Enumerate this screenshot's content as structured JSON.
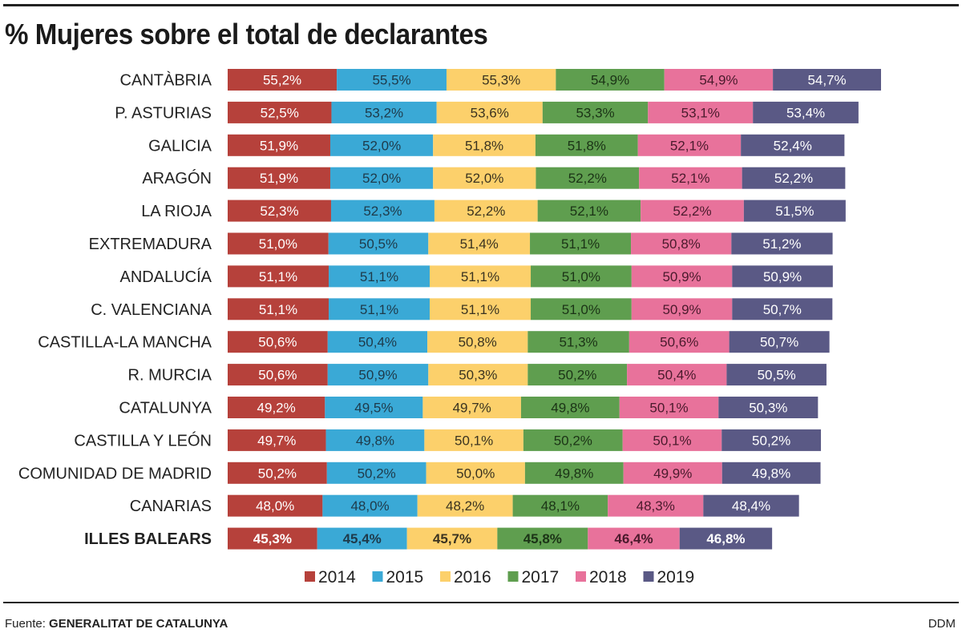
{
  "title": "% Mujeres sobre el total de declarantes",
  "source_label": "Fuente:",
  "source_name": "GENERALITAT DE CATALUNYA",
  "credit": "DDM",
  "chart_data": {
    "type": "bar",
    "orientation": "horizontal",
    "stacked": true,
    "title": "% Mujeres sobre el total de declarantes",
    "categories": [
      "CANTÀBRIA",
      "P. ASTURIAS",
      "GALICIA",
      "ARAGÓN",
      "LA RIOJA",
      "EXTREMADURA",
      "ANDALUCÍA",
      "C. VALENCIANA",
      "CASTILLA-LA MANCHA",
      "R. MURCIA",
      "CATALUNYA",
      "CASTILLA Y LEÓN",
      "COMUNIDAD DE MADRID",
      "CANARIAS",
      "ILLES BALEARS"
    ],
    "highlight": "ILLES BALEARS",
    "series": [
      {
        "name": "2014",
        "color": "#b6413b",
        "text_color": "#ffffff",
        "values": [
          55.2,
          52.5,
          51.9,
          51.9,
          52.3,
          51.0,
          51.1,
          51.1,
          50.6,
          50.6,
          49.2,
          49.7,
          50.2,
          48.0,
          45.3
        ]
      },
      {
        "name": "2015",
        "color": "#3aa9d6",
        "text_color": "#1e3a4a",
        "values": [
          55.5,
          53.2,
          52.0,
          52.0,
          52.3,
          50.5,
          51.1,
          51.1,
          50.4,
          50.9,
          49.5,
          49.8,
          50.2,
          48.0,
          45.4
        ]
      },
      {
        "name": "2016",
        "color": "#fcd06b",
        "text_color": "#3a3320",
        "values": [
          55.3,
          53.6,
          51.8,
          52.0,
          52.2,
          51.4,
          51.1,
          51.1,
          50.8,
          50.3,
          49.7,
          50.1,
          50.0,
          48.2,
          45.7
        ]
      },
      {
        "name": "2017",
        "color": "#5f9e4f",
        "text_color": "#1b3316",
        "values": [
          54.9,
          53.3,
          51.8,
          52.2,
          52.1,
          51.1,
          51.0,
          51.0,
          51.3,
          50.2,
          49.8,
          50.2,
          49.8,
          48.1,
          45.8
        ]
      },
      {
        "name": "2018",
        "color": "#e8729b",
        "text_color": "#4a1a2c",
        "values": [
          54.9,
          53.1,
          52.1,
          52.1,
          52.2,
          50.8,
          50.9,
          50.9,
          50.6,
          50.4,
          50.1,
          50.1,
          49.9,
          48.3,
          46.4
        ]
      },
      {
        "name": "2019",
        "color": "#5a5985",
        "text_color": "#ffffff",
        "values": [
          54.7,
          53.4,
          52.4,
          52.2,
          51.5,
          51.2,
          50.9,
          50.7,
          50.7,
          50.5,
          50.3,
          50.2,
          49.8,
          48.4,
          46.8
        ]
      }
    ],
    "value_format": "decimal comma with %",
    "legend": "bottom",
    "grid": false,
    "xlabel": "",
    "ylabel": ""
  }
}
